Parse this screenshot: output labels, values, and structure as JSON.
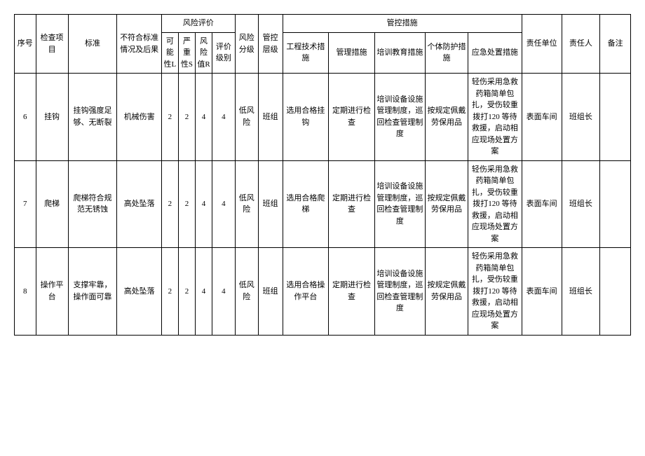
{
  "headers": {
    "seq": "序号",
    "item": "检查项目",
    "standard": "标准",
    "nonconform": "不符合标准情况及后果",
    "riskeval": "风险评价",
    "l": "可能性L",
    "s": "严重性S",
    "r": "风险值R",
    "level": "评价级别",
    "risklevel": "风险分级",
    "ctrllevel": "管控层级",
    "ctrlmeasure": "管控措施",
    "eng": "工程技术措施",
    "mgmt": "管理措施",
    "train": "培训教育措施",
    "ppe": "个体防护措施",
    "emerg": "应急处置措施",
    "unit": "责任单位",
    "person": "责任人",
    "remark": "备注"
  },
  "rows": [
    {
      "seq": "6",
      "item": "挂钩",
      "standard": "挂钩强度足够、无断裂",
      "nonconform": "机械伤害",
      "l": "2",
      "s": "2",
      "r": "4",
      "level": "4",
      "risklevel": "低风险",
      "ctrllevel": "班组",
      "eng": "选用合格挂钩",
      "mgmt": "定期进行检查",
      "train": "培训设备设施管理制度，巡回检查管理制度",
      "ppe": "按规定佩戴劳保用品",
      "emerg": "轻伤采用急救药箱简单包扎，受伤较重拨打120 等待救援，启动相应现场处置方案",
      "unit": "表面车间",
      "person": "班组长",
      "remark": ""
    },
    {
      "seq": "7",
      "item": "爬梯",
      "standard": "爬梯符合规范无锈蚀",
      "nonconform": "高处坠落",
      "l": "2",
      "s": "2",
      "r": "4",
      "level": "4",
      "risklevel": "低风险",
      "ctrllevel": "班组",
      "eng": "选用合格爬梯",
      "mgmt": "定期进行检查",
      "train": "培训设备设施管理制度，巡回检查管理制度",
      "ppe": "按规定佩戴劳保用品",
      "emerg": "轻伤采用急救药箱简单包扎，受伤较重拨打120 等待救援，启动相应现场处置方案",
      "unit": "表面车间",
      "person": "班组长",
      "remark": ""
    },
    {
      "seq": "8",
      "item": "操作平台",
      "standard": "支撑牢靠，操作面可靠",
      "nonconform": "高处坠落",
      "l": "2",
      "s": "2",
      "r": "4",
      "level": "4",
      "risklevel": "低风险",
      "ctrllevel": "班组",
      "eng": "选用合格操作平台",
      "mgmt": "定期进行检查",
      "train": "培训设备设施管理制度，巡回检查管理制度",
      "ppe": "按规定佩戴劳保用品",
      "emerg": "轻伤采用急救药箱简单包扎，受伤较重拨打120 等待救援，启动相应现场处置方案",
      "unit": "表面车间",
      "person": "班组长",
      "remark": ""
    }
  ]
}
